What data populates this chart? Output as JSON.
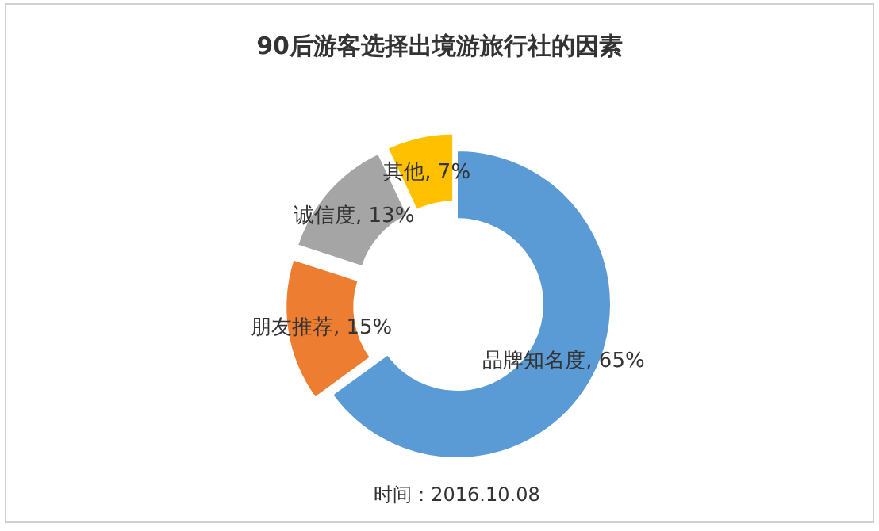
{
  "chart_data": {
    "type": "donut",
    "title": "90后游客选择出境游旅行社的因素",
    "categories": [
      "品牌知名度",
      "朋友推荐",
      "诚信度",
      "其他"
    ],
    "values": [
      65,
      15,
      13,
      7
    ],
    "value_labels": [
      "65%",
      "15%",
      "13%",
      "7%"
    ],
    "colors": [
      "#5b9bd5",
      "#ed7d31",
      "#a5a5a5",
      "#ffc000"
    ],
    "annotations": [
      "时间：2016.10.08"
    ]
  }
}
